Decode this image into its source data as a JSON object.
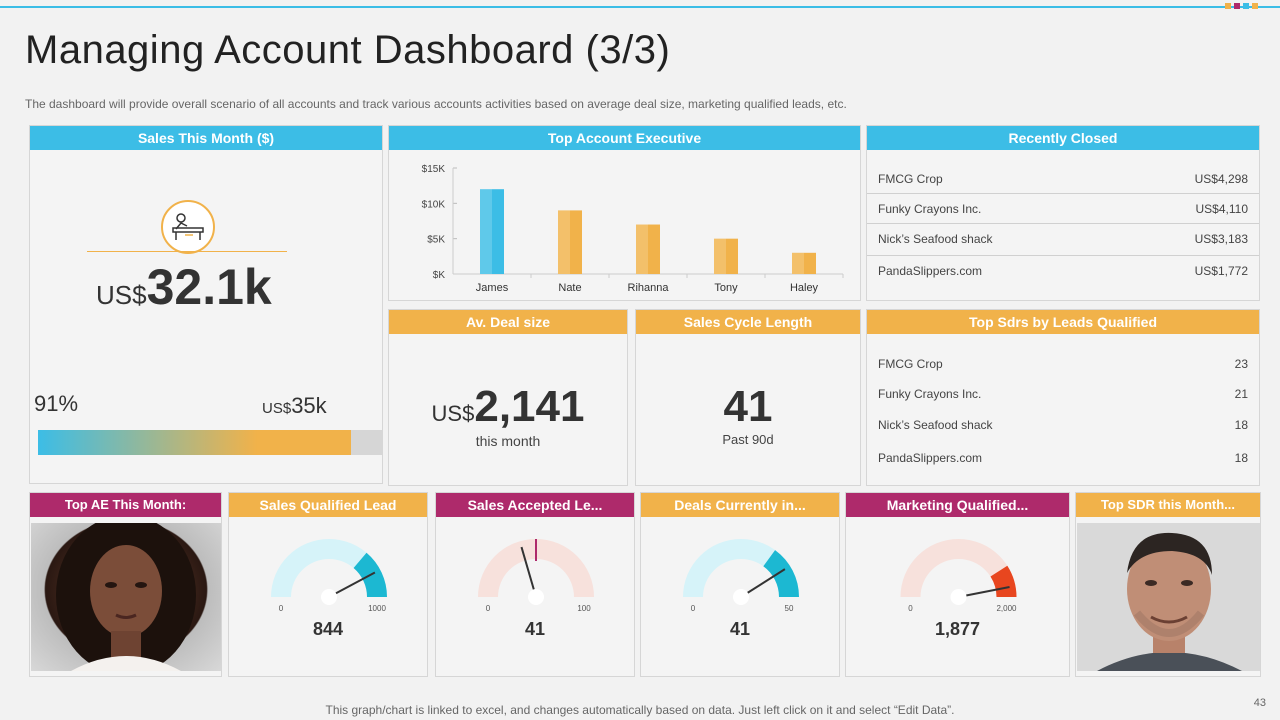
{
  "page": {
    "title": "Managing Account Dashboard (3/3)",
    "subtitle": "The dashboard  will provide  overall  scenario of all accounts and track various  accounts activities based on average  deal size, marketing qualified leads, etc.",
    "footer": "This graph/chart is linked to excel, and changes automatically based on data. Just left click on it and select “Edit Data”.",
    "page_number": "43"
  },
  "colors": {
    "blue": "#3cbde6",
    "orange": "#f1b24a",
    "magenta": "#ae2a6b",
    "red": "#e8461f"
  },
  "sales_month": {
    "header": "Sales This Month ($)",
    "icon": "desk-worker-icon",
    "prefix": "US$",
    "value": "32.1k",
    "percent_label": "91%",
    "target_prefix": "US$",
    "target_value": "35k",
    "progress_fraction": 0.91
  },
  "top_ae": {
    "header": "Top Account Executive",
    "chart_data": {
      "type": "bar",
      "categories": [
        "James",
        "Nate",
        "Rihanna",
        "Tony",
        "Haley"
      ],
      "values": [
        12000,
        9000,
        7000,
        5000,
        3000
      ],
      "ylim": [
        0,
        15000
      ],
      "yticks": [
        0,
        5000,
        10000,
        15000
      ],
      "ytick_labels": [
        "$K",
        "$5K",
        "$10K",
        "$15K"
      ],
      "colors": [
        "#3cbde6",
        "#f1b24a",
        "#f1b24a",
        "#f1b24a",
        "#f1b24a"
      ]
    }
  },
  "recently_closed": {
    "header": "Recently Closed",
    "rows": [
      {
        "name": "FMCG Crop",
        "value": "US$4,298"
      },
      {
        "name": "Funky Crayons Inc.",
        "value": "US$4,110"
      },
      {
        "name": "Nick’s Seafood shack",
        "value": "US$3,183"
      },
      {
        "name": "PandaSlippers.com",
        "value": "US$1,772"
      }
    ]
  },
  "avg_deal": {
    "header": "Av. Deal size",
    "prefix": "US$",
    "value": "2,141",
    "caption": "this month"
  },
  "sales_cycle": {
    "header": "Sales Cycle Length",
    "value": "41",
    "caption": "Past 90d"
  },
  "top_sdrs": {
    "header": "Top Sdrs by Leads Qualified",
    "rows": [
      {
        "name": "FMCG Crop",
        "value": "23"
      },
      {
        "name": "Funky Crayons Inc.",
        "value": "21"
      },
      {
        "name": "Nick’s Seafood shack",
        "value": "18"
      },
      {
        "name": "PandaSlippers.com",
        "value": "18"
      }
    ]
  },
  "ae_month": {
    "header": "Top AE This Month:"
  },
  "sdr_month": {
    "header": "Top SDR this Month..."
  },
  "gauges": [
    {
      "header": "Sales Qualified Lead",
      "min": "0",
      "max": "1000",
      "value_label": "844",
      "fraction": 0.844,
      "fill": "#1cb8d2",
      "track": "#d6f3f9",
      "needle": "#333333",
      "theme": "orange"
    },
    {
      "header": "Sales Accepted Le...",
      "min": "0",
      "max": "100",
      "value_label": "41",
      "fraction": 0.41,
      "fill": "#ae2a6b",
      "track": "#f7e1dc",
      "needle": "#333333",
      "theme": "magenta",
      "marker_fraction": 0.5
    },
    {
      "header": "Deals Currently in...",
      "min": "0",
      "max": "50",
      "value_label": "41",
      "fraction": 0.82,
      "fill": "#1cb8d2",
      "track": "#d6f3f9",
      "needle": "#333333",
      "theme": "orange"
    },
    {
      "header": "Marketing Qualified...",
      "min": "0",
      "max": "2,000",
      "value_label": "1,877",
      "fraction": 0.9385,
      "fill": "#e8461f",
      "track": "#f7e1dc",
      "needle": "#333333",
      "theme": "magenta"
    }
  ]
}
